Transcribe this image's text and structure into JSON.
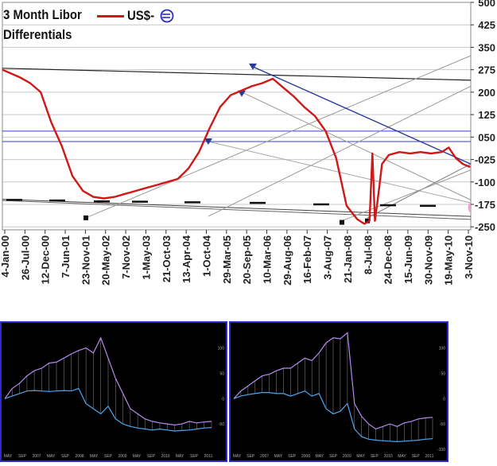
{
  "title_line1": "3 Month Libor",
  "title_line2": "Differentials",
  "legend_label": "US$-",
  "legend_icon": "euro-icon",
  "colors": {
    "series": "#d01818",
    "trend_blue": "#2a3a9a",
    "channel": "#3a3ae0",
    "grid": "#c8c8c8",
    "mini_bg": "#000000",
    "mini_border": "#2a2ad0",
    "mini_series_upper": "#b48cf0",
    "mini_series_lower": "#4aa8f0",
    "pink_marker": "#f0a0c8"
  },
  "chart_data": [
    {
      "type": "line",
      "title": "3 Month Libor Differentials",
      "series": [
        {
          "name": "US$-",
          "x": [
            "2000-01-04",
            "2000-06-01",
            "2000-09-01",
            "2000-12-01",
            "2001-03-01",
            "2001-06-01",
            "2001-09-01",
            "2001-12-01",
            "2002-03-01",
            "2002-06-01",
            "2002-09-01",
            "2002-12-01",
            "2003-03-01",
            "2003-06-01",
            "2003-09-01",
            "2003-12-01",
            "2004-03-01",
            "2004-06-01",
            "2004-09-01",
            "2004-12-01",
            "2005-03-01",
            "2005-06-01",
            "2005-09-01",
            "2005-12-01",
            "2006-03-01",
            "2006-06-01",
            "2006-09-01",
            "2006-12-01",
            "2007-03-01",
            "2007-06-01",
            "2007-09-01",
            "2007-12-01",
            "2008-03-01",
            "2008-06-01",
            "2008-08-01",
            "2008-09-15",
            "2008-10-10",
            "2008-11-01",
            "2008-12-01",
            "2009-01-01",
            "2009-03-01",
            "2009-06-01",
            "2009-09-01",
            "2009-12-01",
            "2010-03-01",
            "2010-06-01",
            "2010-08-01",
            "2010-10-01",
            "2010-12-01",
            "2011-02-01"
          ],
          "values": [
            275,
            250,
            230,
            200,
            100,
            20,
            -80,
            -130,
            -150,
            -155,
            -150,
            -140,
            -130,
            -120,
            -110,
            -100,
            -90,
            -55,
            0,
            80,
            150,
            190,
            205,
            220,
            230,
            245,
            215,
            185,
            150,
            120,
            70,
            -20,
            -180,
            -225,
            -240,
            -230,
            -5,
            -230,
            -140,
            -40,
            -10,
            0,
            -5,
            0,
            -5,
            0,
            15,
            -20,
            -40,
            -50
          ]
        }
      ],
      "x_tick_labels": [
        "4-Jan-00",
        "26-Jul-00",
        "12-Dec-00",
        "7-Jun-01",
        "23-Nov-01",
        "20-May-02",
        "7-Nov-02",
        "1-May-03",
        "21-Oct-03",
        "13-Apr-04",
        "1-Oct-04",
        "29-Mar-05",
        "20-Sep-05",
        "10-Mar-06",
        "29-Aug-06",
        "16-Feb-07",
        "3-Aug-07",
        "21-Jan-08",
        "8-Jul-08",
        "24-Dec-08",
        "15-Jun-09",
        "30-Nov-09",
        "19-May-10",
        "3-Nov-10"
      ],
      "y_tick_labels": [
        "500",
        "425",
        "350",
        "275",
        "200",
        "125",
        "050",
        "-025",
        "-100",
        "-175",
        "-250"
      ],
      "ylim": [
        -260,
        500
      ],
      "grid": true
    },
    {
      "type": "line",
      "series": [
        {
          "values": [
            0,
            20,
            30,
            45,
            55,
            60,
            70,
            72,
            80,
            88,
            95,
            100,
            90,
            120,
            80,
            40,
            10,
            -20,
            -30,
            -40,
            -45,
            -48,
            -50,
            -52,
            -50,
            -45,
            -48,
            -46,
            -45
          ]
        },
        {
          "values": [
            0,
            5,
            10,
            15,
            16,
            15,
            14,
            15,
            16,
            15,
            20,
            -10,
            -20,
            -30,
            -15,
            -40,
            -50,
            -55,
            -58,
            -60,
            -62,
            -60,
            -62,
            -64,
            -63,
            -62,
            -60,
            -58,
            -57
          ]
        }
      ],
      "x_tick_labels": [
        "MAY",
        "SEP",
        "2007",
        "MAY",
        "SEP",
        "2008",
        "MAY",
        "SEP",
        "2009",
        "MAY",
        "SEP",
        "2010",
        "MAY",
        "SEP",
        "2011"
      ],
      "y_tick_labels": [
        "100",
        "50",
        "0",
        "-50"
      ]
    },
    {
      "type": "line",
      "series": [
        {
          "values": [
            0,
            15,
            25,
            35,
            45,
            48,
            55,
            60,
            60,
            70,
            80,
            75,
            90,
            110,
            120,
            118,
            130,
            -10,
            -35,
            -50,
            -60,
            -55,
            -50,
            -55,
            -48,
            -45,
            -40,
            -38,
            -37
          ]
        },
        {
          "values": [
            0,
            5,
            8,
            10,
            12,
            12,
            10,
            10,
            5,
            10,
            15,
            5,
            10,
            -20,
            -30,
            -25,
            -10,
            -60,
            -75,
            -80,
            -82,
            -83,
            -84,
            -85,
            -84,
            -83,
            -82,
            -80,
            -79
          ]
        }
      ],
      "x_tick_labels": [
        "MAY",
        "SEP",
        "2007",
        "MAY",
        "SEP",
        "2008",
        "MAY",
        "SEP",
        "2009",
        "MAY",
        "SEP",
        "2010",
        "MAY",
        "SEP",
        "2011"
      ],
      "y_tick_labels": [
        "100",
        "50",
        "0",
        "-50",
        "-100"
      ]
    }
  ]
}
